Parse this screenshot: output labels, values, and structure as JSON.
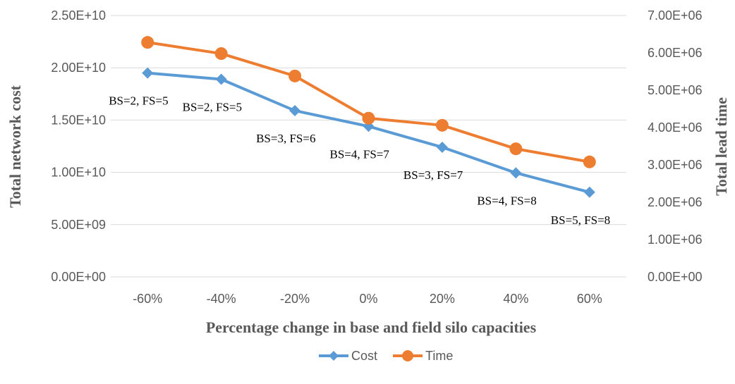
{
  "chart_data": {
    "type": "line",
    "title": "",
    "xlabel": "Percentage change in base and field silo capacities",
    "ylabel": "Total network cost",
    "y2label": "Total lead time",
    "categories": [
      "-60%",
      "-40%",
      "-20%",
      "0%",
      "20%",
      "40%",
      "60%"
    ],
    "ylim": [
      0,
      25000000000
    ],
    "y2lim": [
      0,
      7000000
    ],
    "y_ticks": [
      "0.00E+00",
      "5.00E+09",
      "1.00E+10",
      "1.50E+10",
      "2.00E+10",
      "2.50E+10"
    ],
    "y2_ticks": [
      "0.00E+00",
      "1.00E+06",
      "2.00E+06",
      "3.00E+06",
      "4.00E+06",
      "5.00E+06",
      "6.00E+06",
      "7.00E+06"
    ],
    "grid": true,
    "legend_position": "bottom",
    "series": [
      {
        "name": "Cost",
        "axis": "left",
        "color": "#5b9bd5",
        "marker": "diamond",
        "values": [
          19500000000,
          18900000000,
          15900000000,
          14400000000,
          12400000000,
          9950000000,
          8100000000
        ]
      },
      {
        "name": "Time",
        "axis": "right",
        "color": "#ed7d31",
        "marker": "circle",
        "values": [
          6280000,
          5980000,
          5380000,
          4250000,
          4060000,
          3430000,
          3080000
        ]
      }
    ],
    "annotations": [
      "BS=2, FS=5",
      "BS=2, FS=5",
      "BS=3, FS=6",
      "BS=4, FS=7",
      "BS=3, FS=7",
      "BS=4, FS=8",
      "BS=5, FS=8"
    ]
  }
}
